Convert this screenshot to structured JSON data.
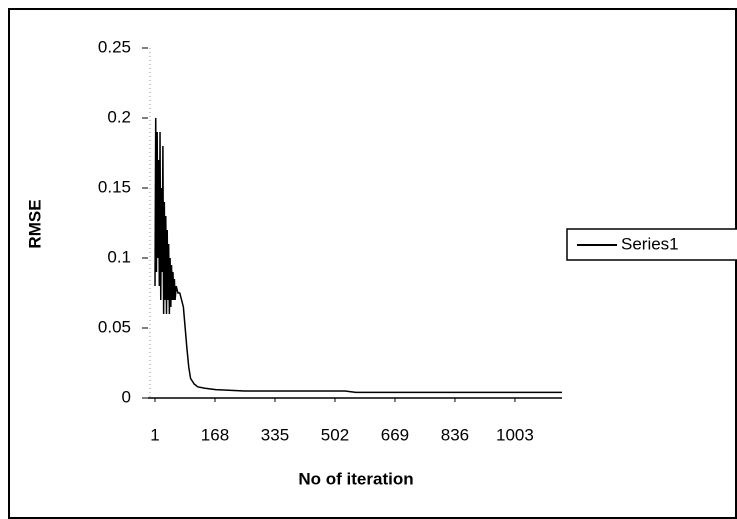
{
  "chart_data": {
    "type": "line",
    "x_label": "No of iteration",
    "y_label": "RMSE",
    "x": [
      1,
      3,
      5,
      7,
      9,
      11,
      13,
      15,
      17,
      19,
      21,
      23,
      25,
      27,
      29,
      31,
      33,
      35,
      37,
      39,
      41,
      43,
      45,
      47,
      49,
      51,
      53,
      55,
      57,
      60,
      65,
      70,
      75,
      80,
      85,
      90,
      95,
      100,
      110,
      120,
      140,
      170,
      250,
      400,
      530,
      560,
      700,
      900,
      1134
    ],
    "series": [
      {
        "name": "Series1",
        "color": "#000000",
        "values": [
          0.08,
          0.2,
          0.09,
          0.19,
          0.1,
          0.17,
          0.08,
          0.19,
          0.07,
          0.15,
          0.09,
          0.18,
          0.06,
          0.14,
          0.07,
          0.13,
          0.06,
          0.12,
          0.07,
          0.11,
          0.06,
          0.1,
          0.065,
          0.095,
          0.07,
          0.09,
          0.07,
          0.085,
          0.07,
          0.08,
          0.075,
          0.075,
          0.07,
          0.065,
          0.05,
          0.035,
          0.022,
          0.014,
          0.01,
          0.008,
          0.007,
          0.006,
          0.005,
          0.005,
          0.005,
          0.004,
          0.004,
          0.004,
          0.004
        ]
      }
    ],
    "xlim": [
      1,
      1134
    ],
    "xticks": [
      1,
      168,
      335,
      502,
      669,
      836,
      1003
    ],
    "ylim": [
      0,
      0.25
    ],
    "yticks": [
      0,
      0.05,
      0.1,
      0.15,
      0.2,
      0.25
    ],
    "legend": "right"
  }
}
